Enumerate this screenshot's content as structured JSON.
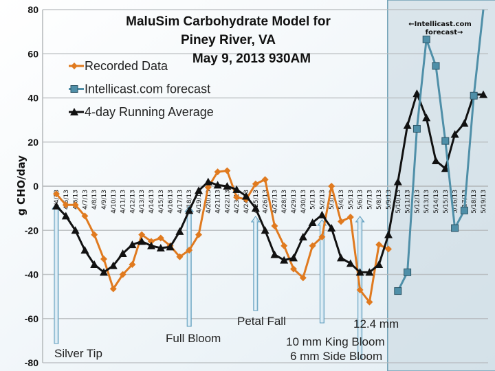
{
  "chart_data": {
    "type": "line",
    "title": [
      "MaluSim Carbohydrate Model for",
      "Piney River, VA",
      "May 9, 2013 930AM"
    ],
    "ylabel": "g CHO/day",
    "xlabel": "",
    "ylim": [
      -80,
      80
    ],
    "yticks": [
      80,
      60,
      40,
      20,
      0,
      -20,
      -40,
      -60,
      -80
    ],
    "grid": true,
    "legend_position": "top-left",
    "categories": [
      "4/4/13",
      "4/5/13",
      "4/6/13",
      "4/7/13",
      "4/8/13",
      "4/9/13",
      "4/10/13",
      "4/11/13",
      "4/12/13",
      "4/13/13",
      "4/14/13",
      "4/15/13",
      "4/16/13",
      "4/17/13",
      "4/18/13",
      "4/19/13",
      "4/20/13",
      "4/21/13",
      "4/22/13",
      "4/23/13",
      "4/24/13",
      "4/25/13",
      "4/26/13",
      "4/27/13",
      "4/28/13",
      "4/29/13",
      "4/30/13",
      "5/1/13",
      "5/2/13",
      "5/3/13",
      "5/4/13",
      "5/5/13",
      "5/6/13",
      "5/7/13",
      "5/8/13",
      "5/9/13",
      "5/10/13",
      "5/11/13",
      "5/12/13",
      "5/13/13",
      "5/14/13",
      "5/15/13",
      "5/16/13",
      "5/17/13",
      "5/18/13",
      "5/19/13"
    ],
    "series": [
      {
        "name": "Recorded Data",
        "color": "#e07a1f",
        "marker": "diamond",
        "values": [
          -3.5,
          -8.5,
          -8.5,
          -13.5,
          -22,
          -33,
          -46.5,
          -40,
          -35.5,
          -22,
          -25,
          -23.5,
          -27,
          -32,
          -29,
          -22,
          -0.5,
          6.5,
          7,
          -5,
          -6,
          1,
          3,
          -18,
          -27,
          -37.5,
          -41.5,
          -27,
          -23,
          0,
          -16,
          -14,
          -47,
          -52.5,
          -26.5,
          -28.5,
          null,
          null,
          null,
          null,
          null,
          null,
          null,
          null,
          null,
          null
        ]
      },
      {
        "name": "Intellicast.com forecast",
        "color": "#4f8fa8",
        "marker": "square",
        "values": [
          null,
          null,
          null,
          null,
          null,
          null,
          null,
          null,
          null,
          null,
          null,
          null,
          null,
          null,
          null,
          null,
          null,
          null,
          null,
          null,
          null,
          null,
          null,
          null,
          null,
          null,
          null,
          null,
          null,
          null,
          null,
          null,
          null,
          null,
          null,
          null,
          -47.5,
          -39,
          26,
          66.5,
          54.5,
          20.5,
          -19,
          -11,
          41,
          80
        ]
      },
      {
        "name": "4-day Running Average",
        "color": "#111111",
        "marker": "triangle",
        "values": [
          -9,
          -13.5,
          -20,
          -29,
          -35.5,
          -39,
          -36,
          -30.5,
          -26.5,
          -25,
          -27,
          -28,
          -27.5,
          -20.5,
          -11,
          -2,
          2,
          0.5,
          0,
          -1.5,
          -4.5,
          -10,
          -20,
          -31,
          -33.5,
          -32.5,
          -23,
          -16.5,
          -13,
          -19,
          -32.5,
          -35,
          -39,
          -39,
          -35.5,
          -22,
          2,
          27.5,
          42,
          31,
          11.5,
          8,
          23.5,
          28.5,
          41.5,
          41.5
        ]
      }
    ],
    "forecast_region": {
      "start": "5/10/13",
      "end": "5/19/13",
      "label": "←Intellicast.com forecast→"
    },
    "annotations": [
      {
        "text": "Silver Tip",
        "at": "4/4/13"
      },
      {
        "text": "Full Bloom",
        "at": "4/18/13"
      },
      {
        "text": "Petal Fall",
        "at": "4/25/13"
      },
      {
        "text": "10 mm King Bloom",
        "at": "5/2/13"
      },
      {
        "text": "12.4 mm",
        "at": "5/6/13"
      },
      {
        "text": "6 mm Side Bloom",
        "at": "5/6/13"
      }
    ]
  }
}
